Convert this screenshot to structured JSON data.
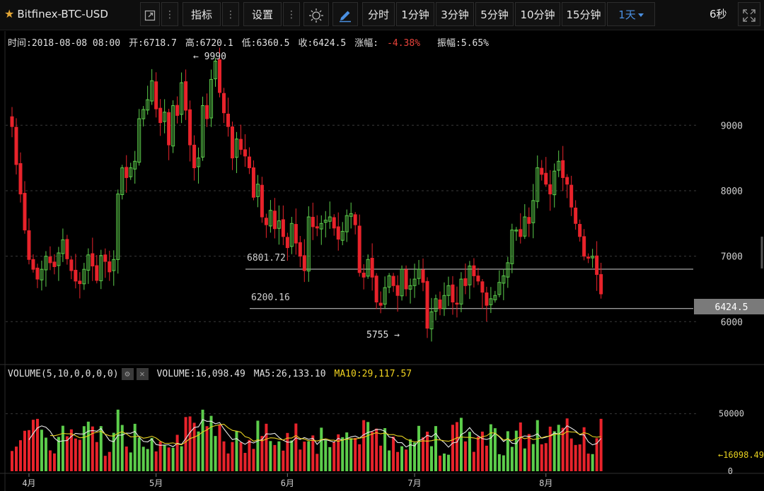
{
  "toolbar": {
    "symbol": "Bitfinex-BTC-USD",
    "indicators_label": "指标",
    "settings_label": "设置",
    "intervals": [
      "分时",
      "1分钟",
      "3分钟",
      "5分钟",
      "10分钟",
      "15分钟"
    ],
    "active_interval": "1天",
    "refresh_label": "6秒"
  },
  "info": {
    "time": "时间:2018-08-08 08:00",
    "open": "开:6718.7",
    "high": "高:6720.1",
    "low": "低:6360.5",
    "close": "收:6424.5",
    "change_label": "涨幅:",
    "change_value": "-4.38%",
    "amplitude": "振幅:5.65%"
  },
  "volume_header": {
    "title": "VOLUME(5,10,0,0,0,0)",
    "volume": "VOLUME:16,098.49",
    "ma5": "MA5:26,133.10",
    "ma10": "MA10:29,117.57"
  },
  "colors": {
    "up": "#5ccd4b",
    "down": "#e8232b",
    "ma5": "#e8e8e8",
    "ma10": "#e6d020",
    "last_price_bg": "#7a7a7a"
  },
  "chart_data": {
    "type": "candlestick",
    "price_axis": {
      "ticks": [
        6000,
        7000,
        8000,
        9000
      ],
      "min": 5550,
      "max": 10050
    },
    "volume_axis": {
      "ticks": [
        0,
        50000
      ],
      "max": 75000
    },
    "x_ticks": [
      "4月",
      "5月",
      "6月",
      "7月",
      "8月"
    ],
    "x_tick_day_index": [
      4,
      34,
      65,
      95,
      126
    ],
    "annotations": {
      "high_label": "← 9990",
      "low_label": "5755 →",
      "last_price": "6424.5",
      "last_volume": "←16098.49"
    },
    "levels": [
      {
        "label": "6801.72",
        "value": 6801.72
      },
      {
        "label": "6200.16",
        "value": 6200.16
      }
    ],
    "first_day_index": 0,
    "close_series": [
      8980,
      8400,
      7950,
      7400,
      6950,
      6800,
      6650,
      6800,
      7000,
      6900,
      6840,
      7050,
      7250,
      6960,
      6780,
      6620,
      6580,
      6800,
      7020,
      6850,
      6630,
      7010,
      6920,
      6760,
      6950,
      7950,
      8350,
      8200,
      8350,
      8450,
      9100,
      9240,
      9390,
      9680,
      9250,
      9040,
      9200,
      8700,
      9300,
      9150,
      9650,
      9230,
      8700,
      8350,
      8500,
      9300,
      9100,
      9700,
      9980,
      9500,
      9190,
      8980,
      8500,
      8790,
      8630,
      8530,
      8350,
      7900,
      8100,
      7600,
      7480,
      7700,
      7420,
      7540,
      7300,
      7130,
      7500,
      7200,
      7000,
      6780,
      7600,
      7450,
      7430,
      7500,
      7550,
      7600,
      7430,
      7260,
      7380,
      7620,
      7650,
      7480,
      6750,
      6680,
      6950,
      6680,
      6300,
      6250,
      6520,
      6700,
      6550,
      6400,
      6800,
      6500,
      6550,
      6650,
      6800,
      6600,
      5900,
      6150,
      6350,
      6200,
      6400,
      6550,
      6300,
      6280,
      6650,
      6550,
      6850,
      6700,
      6620,
      6450,
      6250,
      6350,
      6400,
      6600,
      6700,
      6900,
      7400,
      7400,
      7300,
      7600,
      7500,
      7850,
      8350,
      8250,
      8100,
      7950,
      8300,
      8450,
      8200,
      8100,
      7750,
      7500,
      7300,
      7000,
      6970,
      7000,
      6720,
      6424
    ]
  }
}
